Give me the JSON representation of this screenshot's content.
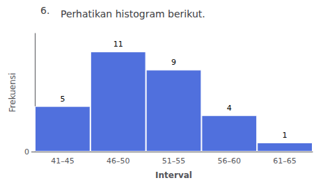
{
  "chart_data": {
    "type": "bar",
    "title": "Perhatikan histogram berikut.",
    "annotations": [
      "6."
    ],
    "categories": [
      "41–45",
      "46–50",
      "51–55",
      "56–60",
      "61–65"
    ],
    "values": [
      5,
      11,
      9,
      4,
      1
    ],
    "xlabel": "Interval",
    "ylabel": "Frekuensi",
    "ylim": [
      0,
      13
    ],
    "yticks": [
      0
    ],
    "grid": false,
    "data_labels": true
  }
}
